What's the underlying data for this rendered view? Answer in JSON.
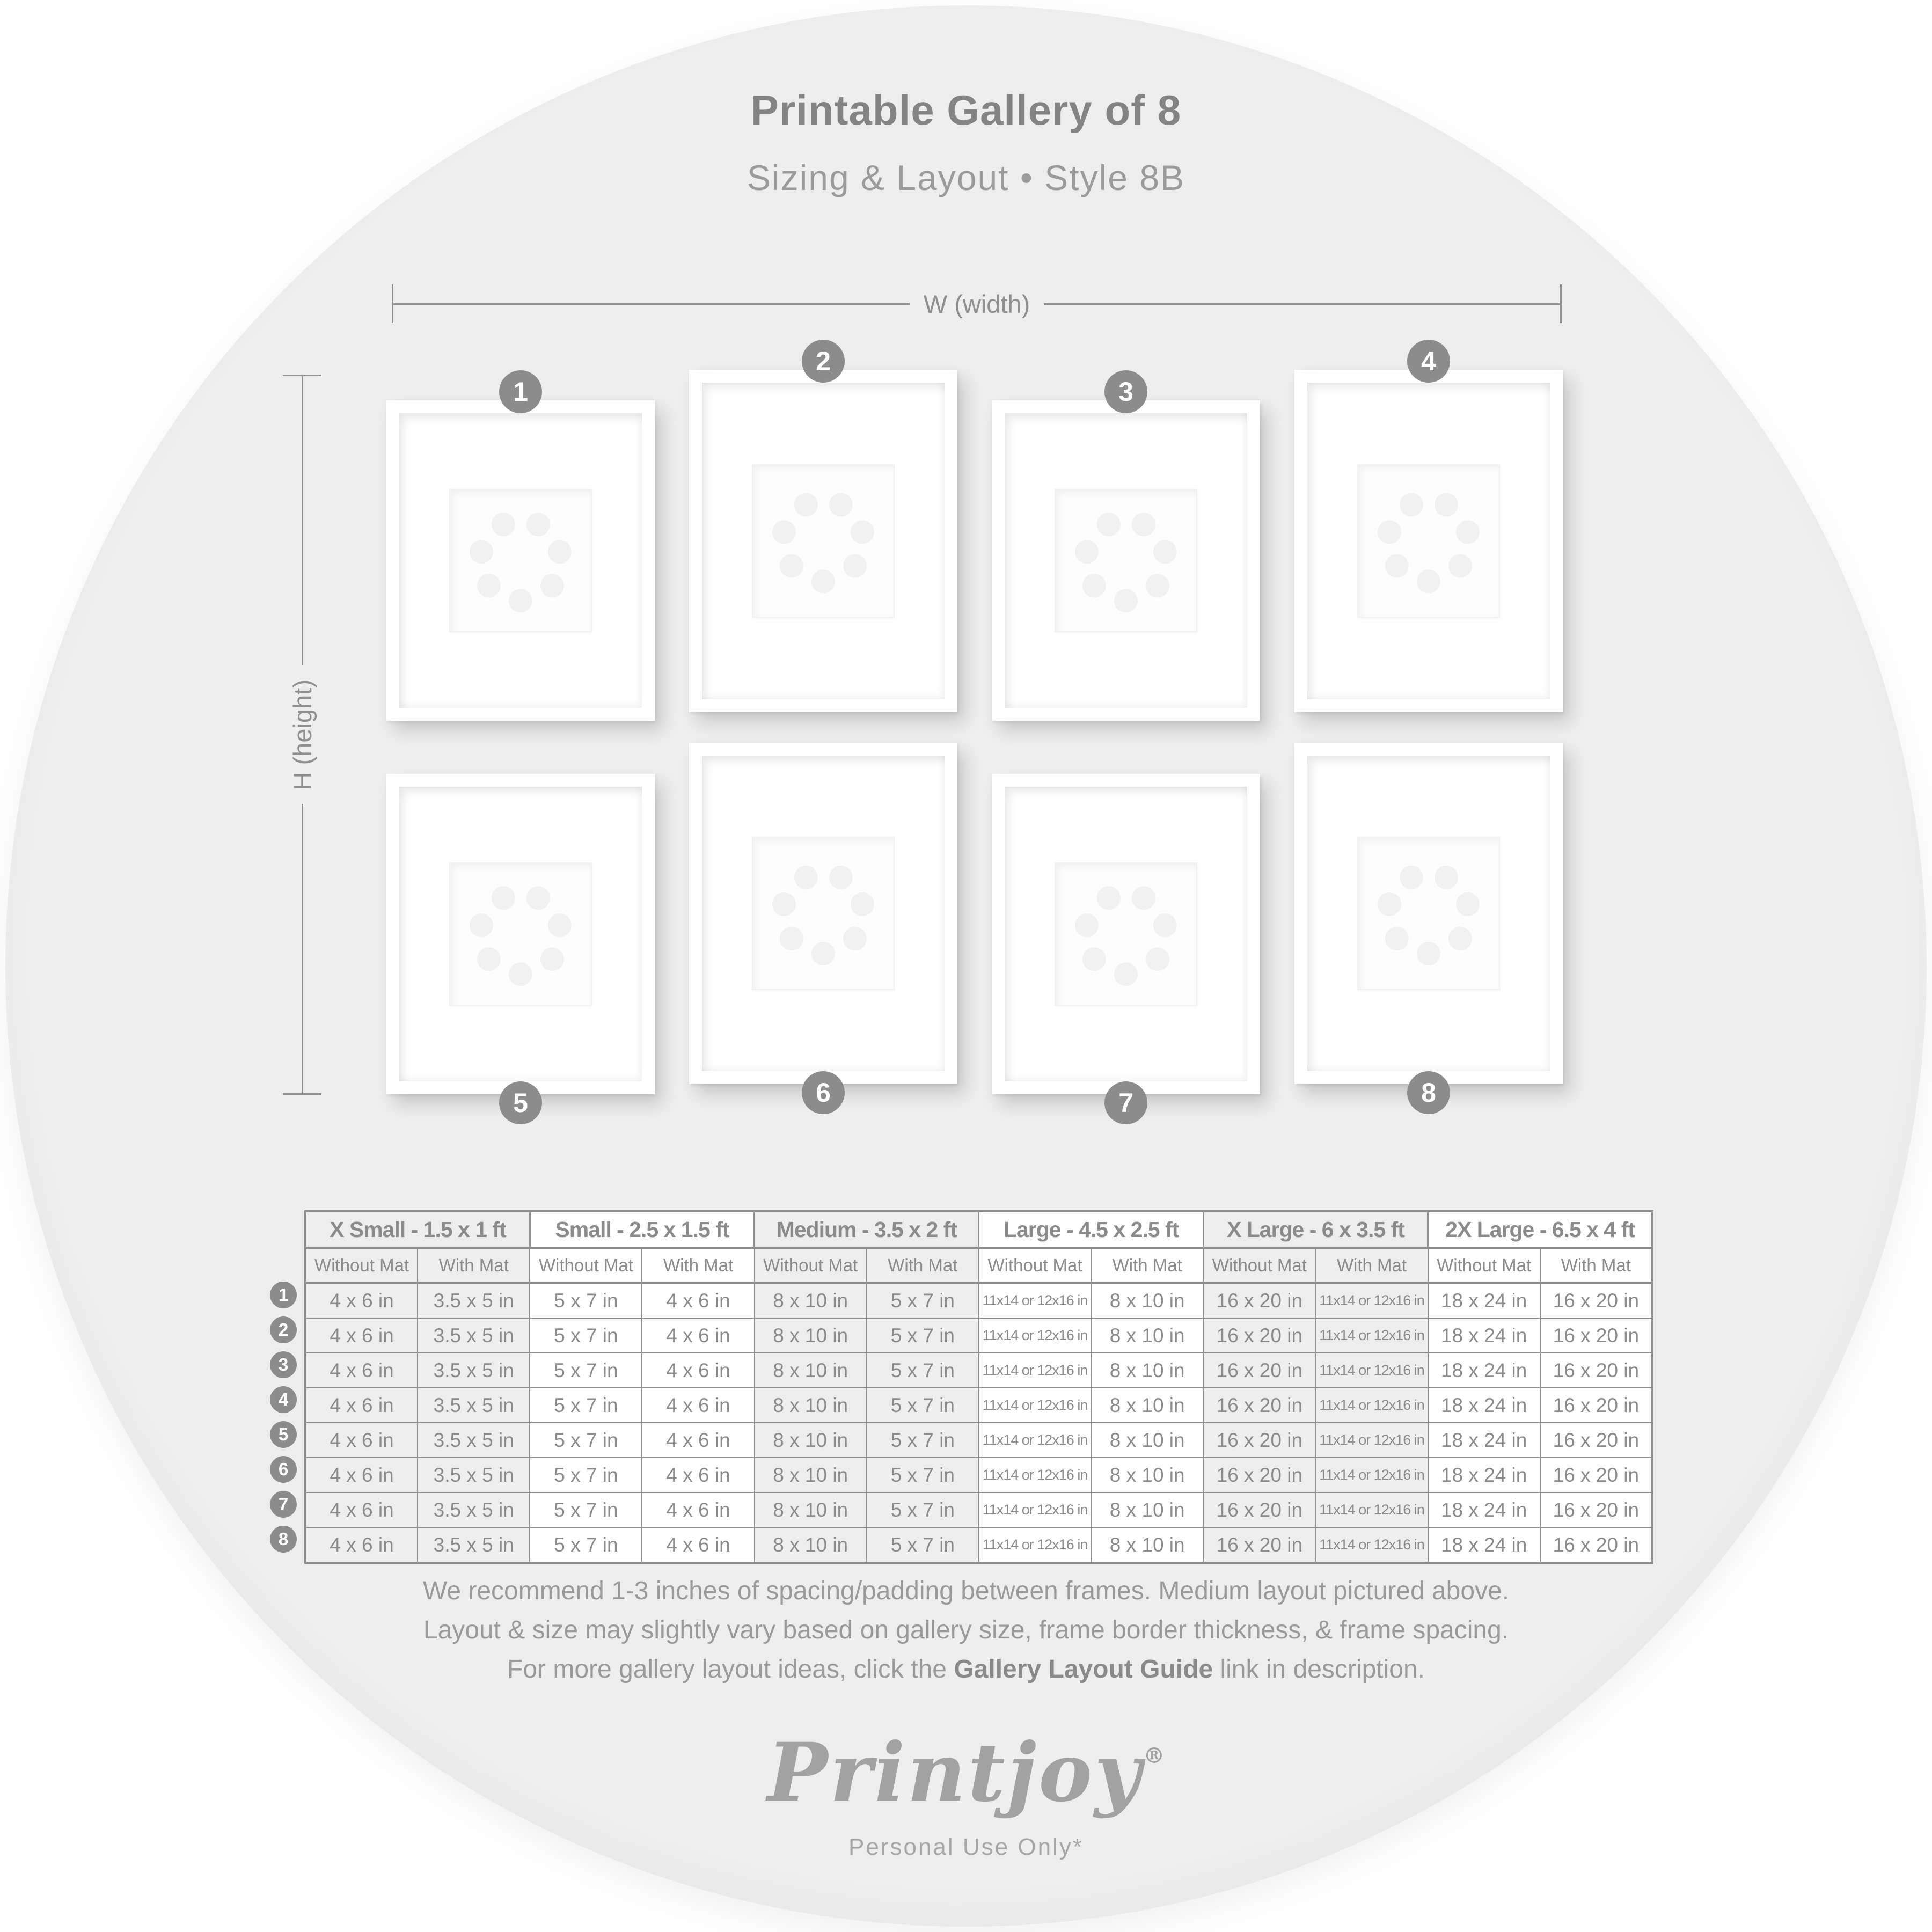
{
  "header": {
    "title": "Printable Gallery of 8",
    "subtitle": "Sizing & Layout • Style 8B"
  },
  "dimensions": {
    "width_label": "W (width)",
    "height_label": "H (height)"
  },
  "gallery": {
    "frames": [
      {
        "number": "1"
      },
      {
        "number": "2"
      },
      {
        "number": "3"
      },
      {
        "number": "4"
      },
      {
        "number": "5"
      },
      {
        "number": "6"
      },
      {
        "number": "7"
      },
      {
        "number": "8"
      }
    ]
  },
  "table": {
    "groups": [
      {
        "label": "X Small - 1.5 x 1 ft"
      },
      {
        "label": "Small - 2.5 x 1.5 ft"
      },
      {
        "label": "Medium - 3.5 x 2 ft"
      },
      {
        "label": "Large - 4.5 x 2.5 ft"
      },
      {
        "label": "X Large - 6 x 3.5 ft"
      },
      {
        "label": "2X Large - 6.5 x 4 ft"
      }
    ],
    "sub_headers": [
      "Without Mat",
      "With Mat"
    ],
    "rows": [
      {
        "badge": "1",
        "values": [
          "4 x 6 in",
          "3.5 x 5 in",
          "5 x 7 in",
          "4 x 6 in",
          "8 x 10 in",
          "5 x 7 in",
          "11x14 or 12x16 in",
          "8 x 10 in",
          "16 x 20 in",
          "11x14 or 12x16 in",
          "18 x 24 in",
          "16 x 20 in"
        ]
      },
      {
        "badge": "2",
        "values": [
          "4 x 6 in",
          "3.5 x 5 in",
          "5 x 7 in",
          "4 x 6 in",
          "8 x 10 in",
          "5 x 7 in",
          "11x14 or 12x16 in",
          "8 x 10 in",
          "16 x 20 in",
          "11x14 or 12x16 in",
          "18 x 24 in",
          "16 x 20 in"
        ]
      },
      {
        "badge": "3",
        "values": [
          "4 x 6 in",
          "3.5 x 5 in",
          "5 x 7 in",
          "4 x 6 in",
          "8 x 10 in",
          "5 x 7 in",
          "11x14 or 12x16 in",
          "8 x 10 in",
          "16 x 20 in",
          "11x14 or 12x16 in",
          "18 x 24 in",
          "16 x 20 in"
        ]
      },
      {
        "badge": "4",
        "values": [
          "4 x 6 in",
          "3.5 x 5 in",
          "5 x 7 in",
          "4 x 6 in",
          "8 x 10 in",
          "5 x 7 in",
          "11x14 or 12x16 in",
          "8 x 10 in",
          "16 x 20 in",
          "11x14 or 12x16 in",
          "18 x 24 in",
          "16 x 20 in"
        ]
      },
      {
        "badge": "5",
        "values": [
          "4 x 6 in",
          "3.5 x 5 in",
          "5 x 7 in",
          "4 x 6 in",
          "8 x 10 in",
          "5 x 7 in",
          "11x14 or 12x16 in",
          "8 x 10 in",
          "16 x 20 in",
          "11x14 or 12x16 in",
          "18 x 24 in",
          "16 x 20 in"
        ]
      },
      {
        "badge": "6",
        "values": [
          "4 x 6 in",
          "3.5 x 5 in",
          "5 x 7 in",
          "4 x 6 in",
          "8 x 10 in",
          "5 x 7 in",
          "11x14 or 12x16 in",
          "8 x 10 in",
          "16 x 20 in",
          "11x14 or 12x16 in",
          "18 x 24 in",
          "16 x 20 in"
        ]
      },
      {
        "badge": "7",
        "values": [
          "4 x 6 in",
          "3.5 x 5 in",
          "5 x 7 in",
          "4 x 6 in",
          "8 x 10 in",
          "5 x 7 in",
          "11x14 or 12x16 in",
          "8 x 10 in",
          "16 x 20 in",
          "11x14 or 12x16 in",
          "18 x 24 in",
          "16 x 20 in"
        ]
      },
      {
        "badge": "8",
        "values": [
          "4 x 6 in",
          "3.5 x 5 in",
          "5 x 7 in",
          "4 x 6 in",
          "8 x 10 in",
          "5 x 7 in",
          "11x14 or 12x16 in",
          "8 x 10 in",
          "16 x 20 in",
          "11x14 or 12x16 in",
          "18 x 24 in",
          "16 x 20 in"
        ]
      }
    ]
  },
  "footer": {
    "line1": "We recommend 1-3 inches of spacing/padding between frames. Medium layout pictured above.",
    "line2": "Layout & size may slightly vary based on gallery size, frame border thickness, & frame spacing.",
    "line3_prefix": "For more gallery layout ideas, click the ",
    "line3_bold": "Gallery Layout Guide",
    "line3_suffix": " link in description."
  },
  "logo": {
    "brand": "Printjoy",
    "registered": "®",
    "tagline": "Personal Use Only*"
  },
  "colors": {
    "circle_background": "#eeeeef",
    "text_grey": "#8b8b8b",
    "badge_grey": "#8c8c8c",
    "table_border": "#8e8e8e"
  }
}
